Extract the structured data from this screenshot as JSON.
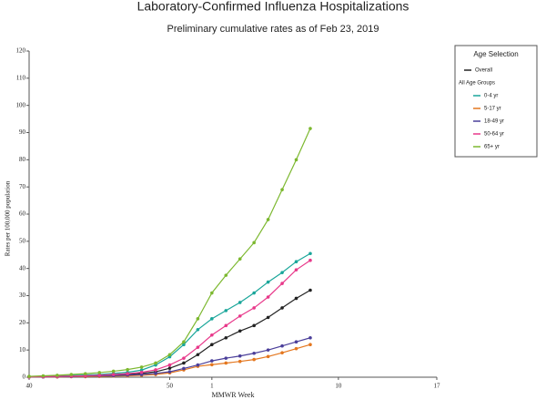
{
  "chart_data": {
    "type": "line",
    "title": "Laboratory-Confirmed Influenza Hospitalizations",
    "subtitle": "Preliminary cumulative rates as of Feb 23, 2019",
    "x_label": "MMWR Week",
    "y_label": "Rates per 100,000 population",
    "categories": [
      40,
      null,
      null,
      null,
      null,
      null,
      null,
      null,
      null,
      null,
      50,
      null,
      null,
      1,
      null,
      null,
      null,
      null,
      null,
      null,
      null,
      null,
      10,
      null,
      null,
      null,
      null,
      null,
      null,
      17
    ],
    "ylim": [
      0,
      120
    ],
    "yticks": [
      0,
      10,
      20,
      30,
      40,
      50,
      60,
      70,
      80,
      90,
      100,
      110,
      120
    ],
    "legend_title": "Age Selection",
    "legend_group_label": "All Age Groups",
    "legend_position": "right",
    "series": [
      {
        "name": "Overall",
        "color": "#222222",
        "values": [
          0.1,
          0.2,
          0.3,
          0.4,
          0.5,
          0.6,
          0.8,
          1,
          1.4,
          2,
          3.3,
          5.2,
          8.3,
          12,
          14.5,
          17,
          19,
          22,
          25.5,
          29,
          32,
          null,
          null,
          null,
          null,
          null,
          null,
          null,
          null,
          null
        ]
      },
      {
        "name": "0-4 yr",
        "color": "#1aa69a",
        "values": [
          0.2,
          0.3,
          0.4,
          0.6,
          0.8,
          1,
          1.4,
          1.8,
          2.6,
          4.5,
          7.5,
          12,
          17.5,
          21.5,
          24.5,
          27.5,
          31,
          35,
          38.5,
          42.5,
          45.5,
          null,
          null,
          null,
          null,
          null,
          null,
          null,
          null,
          null
        ]
      },
      {
        "name": "5-17 yr",
        "color": "#e4771f",
        "values": [
          0.1,
          0.1,
          0.1,
          0.2,
          0.2,
          0.3,
          0.4,
          0.5,
          0.7,
          1,
          1.6,
          2.7,
          4,
          4.6,
          5.2,
          5.8,
          6.5,
          7.6,
          9,
          10.5,
          12,
          null,
          null,
          null,
          null,
          null,
          null,
          null,
          null,
          null
        ]
      },
      {
        "name": "18-49 yr",
        "color": "#4b3f9a",
        "values": [
          0.1,
          0.1,
          0.2,
          0.3,
          0.4,
          0.5,
          0.6,
          0.8,
          1,
          1.4,
          2,
          3.2,
          4.5,
          6,
          7,
          7.8,
          8.8,
          10,
          11.5,
          13,
          14.5,
          null,
          null,
          null,
          null,
          null,
          null,
          null,
          null,
          null
        ]
      },
      {
        "name": "50-64 yr",
        "color": "#e8388a",
        "values": [
          0.1,
          0.2,
          0.3,
          0.4,
          0.5,
          0.7,
          1,
          1.3,
          1.8,
          2.7,
          4.5,
          7,
          11,
          15.5,
          19,
          22.5,
          25.5,
          29.5,
          34.5,
          39.5,
          43,
          null,
          null,
          null,
          null,
          null,
          null,
          null,
          null,
          null
        ]
      },
      {
        "name": "65+ yr",
        "color": "#7cb82f",
        "values": [
          0.3,
          0.5,
          0.7,
          1,
          1.3,
          1.7,
          2.2,
          2.8,
          3.7,
          5.2,
          8.3,
          13,
          21.5,
          31,
          37.5,
          43.5,
          49.5,
          58,
          69,
          80,
          91.5,
          null,
          null,
          null,
          null,
          null,
          null,
          null,
          null,
          null
        ]
      }
    ]
  }
}
